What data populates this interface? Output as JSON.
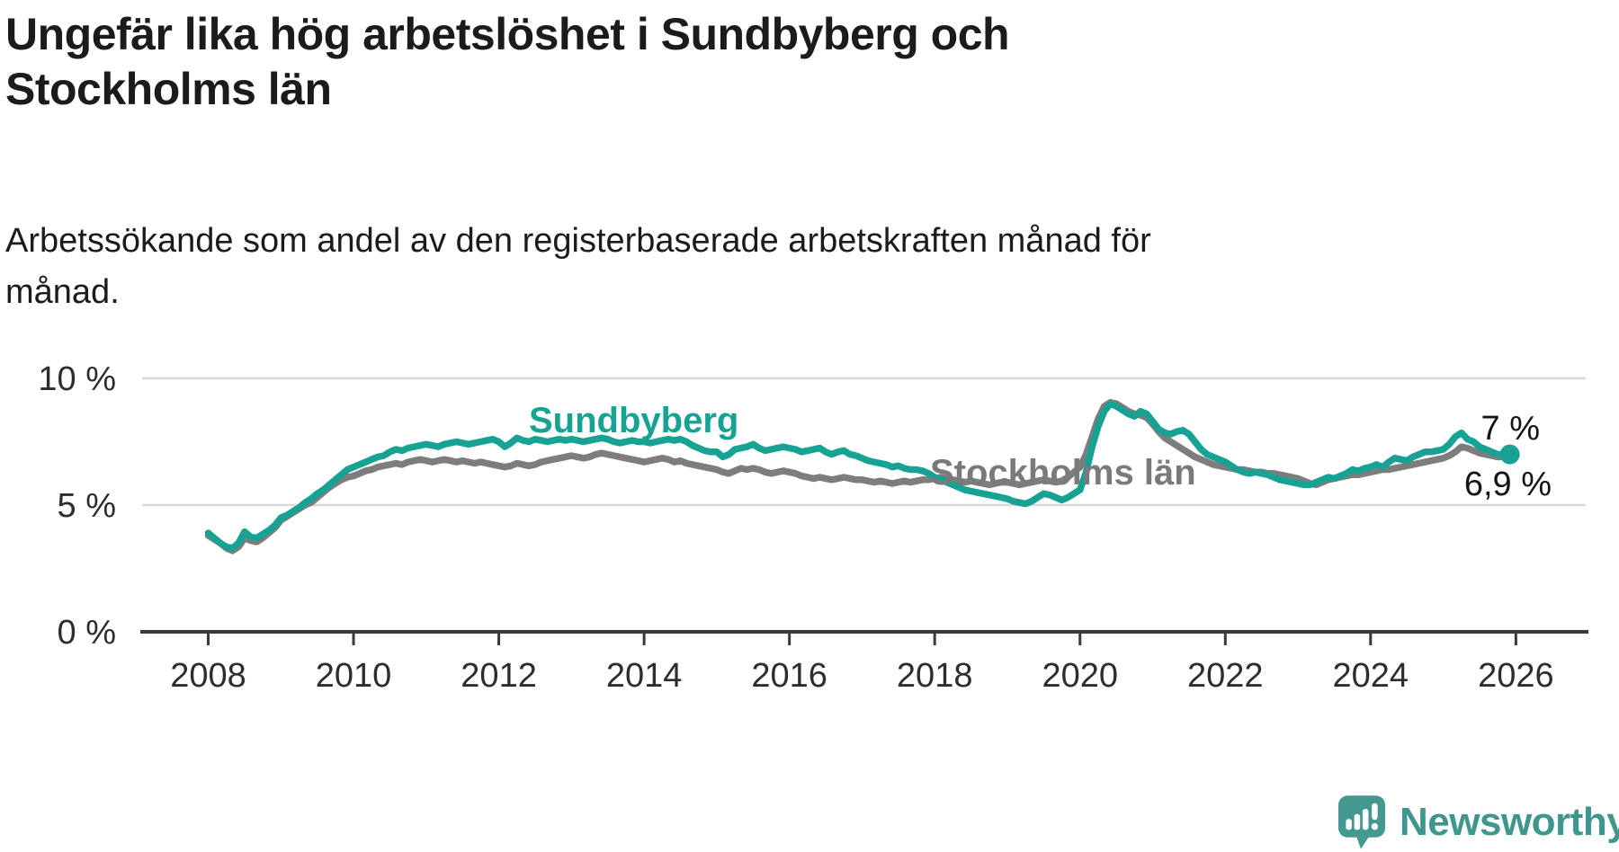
{
  "header": {
    "title": "Ungefär lika hög arbetslöshet i Sundbyberg och Stockholms län",
    "title_lines": [
      "Ungefär lika hög arbetslöshet i Sundbyberg och",
      "Stockholms län"
    ],
    "subtitle": "Arbetssökande som andel av den registerbaserade arbetskraften månad för månad.",
    "subtitle_lines": [
      "Arbetssökande som andel av den registerbaserade arbetskraften månad för",
      "månad."
    ]
  },
  "colors": {
    "accent_teal": "#17a294",
    "comparison_gray": "#7d7d7d",
    "grid": "#d9d9d9",
    "axis": "#3a3a3a",
    "tick_text": "#2d2d2d",
    "annotation_text": "#141414",
    "logo_teal": "#3f968c",
    "logo_icon_teal": "#43988f"
  },
  "chart_data": {
    "type": "line",
    "title": "Ungefär lika hög arbetslöshet i Sundbyberg och Stockholms län",
    "subtitle": "Arbetssökande som andel av den registerbaserade arbetskraften månad för månad.",
    "unit": "%",
    "x_start_year": 2008,
    "points_per_year": 12,
    "xlim": [
      2007.1,
      2026.9
    ],
    "ylim": [
      0,
      10.6
    ],
    "grid": "horizontal-only",
    "legend_position": "direct-labels-on-lines",
    "x_ticks": [
      2008,
      2010,
      2012,
      2014,
      2016,
      2018,
      2020,
      2022,
      2024,
      2026
    ],
    "y_ticks": [
      {
        "value": 0,
        "label": "0 %"
      },
      {
        "value": 5,
        "label": "5 %"
      },
      {
        "value": 10,
        "label": "10 %"
      }
    ],
    "series": [
      {
        "name": "Stockholms län",
        "color": "#7d7d7d",
        "endpoint_dot": false,
        "start": "2008-01",
        "values": [
          3.8,
          3.65,
          3.5,
          3.3,
          3.2,
          3.35,
          3.7,
          3.6,
          3.55,
          3.7,
          3.9,
          4.1,
          4.4,
          4.55,
          4.7,
          4.85,
          5.0,
          5.1,
          5.3,
          5.5,
          5.7,
          5.85,
          6.0,
          6.1,
          6.15,
          6.25,
          6.35,
          6.4,
          6.5,
          6.55,
          6.6,
          6.65,
          6.6,
          6.7,
          6.75,
          6.8,
          6.75,
          6.7,
          6.75,
          6.8,
          6.75,
          6.7,
          6.75,
          6.7,
          6.65,
          6.7,
          6.65,
          6.6,
          6.55,
          6.5,
          6.55,
          6.65,
          6.6,
          6.55,
          6.6,
          6.7,
          6.75,
          6.8,
          6.85,
          6.9,
          6.95,
          6.9,
          6.85,
          6.9,
          7.0,
          7.05,
          7.0,
          6.95,
          6.9,
          6.85,
          6.8,
          6.75,
          6.7,
          6.75,
          6.8,
          6.85,
          6.8,
          6.7,
          6.75,
          6.65,
          6.6,
          6.55,
          6.5,
          6.45,
          6.4,
          6.3,
          6.25,
          6.35,
          6.45,
          6.4,
          6.45,
          6.4,
          6.3,
          6.25,
          6.3,
          6.35,
          6.3,
          6.25,
          6.15,
          6.1,
          6.05,
          6.1,
          6.05,
          6.0,
          6.05,
          6.1,
          6.05,
          6.0,
          6.0,
          5.95,
          5.9,
          5.95,
          5.9,
          5.85,
          5.9,
          5.95,
          5.9,
          5.95,
          6.0,
          6.0,
          6.05,
          6.1,
          6.05,
          6.0,
          5.95,
          5.9,
          5.95,
          5.9,
          5.85,
          5.8,
          5.85,
          5.9,
          5.9,
          5.85,
          5.8,
          5.85,
          5.9,
          5.95,
          6.0,
          5.95,
          5.9,
          5.95,
          6.1,
          6.3,
          6.5,
          7.0,
          7.7,
          8.4,
          8.9,
          9.05,
          9.0,
          8.85,
          8.7,
          8.6,
          8.55,
          8.45,
          8.2,
          7.9,
          7.65,
          7.5,
          7.35,
          7.2,
          7.05,
          6.9,
          6.8,
          6.7,
          6.6,
          6.55,
          6.5,
          6.45,
          6.4,
          6.4,
          6.35,
          6.3,
          6.3,
          6.25,
          6.25,
          6.2,
          6.15,
          6.1,
          6.05,
          5.95,
          5.85,
          5.8,
          5.9,
          6.0,
          6.05,
          6.1,
          6.15,
          6.2,
          6.2,
          6.25,
          6.3,
          6.35,
          6.4,
          6.4,
          6.45,
          6.5,
          6.55,
          6.6,
          6.65,
          6.7,
          6.75,
          6.8,
          6.85,
          6.95,
          7.1,
          7.3,
          7.25,
          7.15,
          7.05,
          7.0,
          6.95,
          6.9,
          6.9,
          6.9
        ]
      },
      {
        "name": "Sundbyberg",
        "color": "#17a294",
        "endpoint_dot": true,
        "start": "2008-01",
        "values": [
          3.9,
          3.7,
          3.5,
          3.35,
          3.3,
          3.5,
          3.95,
          3.75,
          3.7,
          3.85,
          4.0,
          4.2,
          4.5,
          4.6,
          4.75,
          4.9,
          5.1,
          5.25,
          5.45,
          5.6,
          5.8,
          6.0,
          6.2,
          6.4,
          6.5,
          6.6,
          6.7,
          6.8,
          6.9,
          6.95,
          7.1,
          7.2,
          7.15,
          7.25,
          7.3,
          7.35,
          7.4,
          7.35,
          7.3,
          7.4,
          7.45,
          7.5,
          7.45,
          7.4,
          7.45,
          7.5,
          7.55,
          7.6,
          7.5,
          7.3,
          7.45,
          7.65,
          7.55,
          7.5,
          7.6,
          7.55,
          7.5,
          7.55,
          7.6,
          7.55,
          7.6,
          7.55,
          7.5,
          7.55,
          7.6,
          7.65,
          7.6,
          7.5,
          7.45,
          7.5,
          7.55,
          7.5,
          7.5,
          7.45,
          7.5,
          7.55,
          7.6,
          7.55,
          7.6,
          7.5,
          7.35,
          7.25,
          7.15,
          7.1,
          7.1,
          6.9,
          7.0,
          7.2,
          7.25,
          7.3,
          7.4,
          7.25,
          7.15,
          7.2,
          7.25,
          7.3,
          7.25,
          7.2,
          7.1,
          7.15,
          7.2,
          7.25,
          7.1,
          7.0,
          7.1,
          7.15,
          7.0,
          6.95,
          6.85,
          6.75,
          6.7,
          6.65,
          6.6,
          6.5,
          6.55,
          6.45,
          6.4,
          6.4,
          6.35,
          6.25,
          6.1,
          6.0,
          5.9,
          5.8,
          5.7,
          5.6,
          5.55,
          5.5,
          5.45,
          5.4,
          5.35,
          5.3,
          5.25,
          5.15,
          5.1,
          5.05,
          5.15,
          5.3,
          5.45,
          5.4,
          5.3,
          5.2,
          5.3,
          5.45,
          5.6,
          6.3,
          7.3,
          8.1,
          8.7,
          9.0,
          8.9,
          8.75,
          8.6,
          8.5,
          8.7,
          8.6,
          8.3,
          8.0,
          7.85,
          7.8,
          7.9,
          7.95,
          7.8,
          7.5,
          7.2,
          7.0,
          6.9,
          6.8,
          6.7,
          6.55,
          6.4,
          6.3,
          6.25,
          6.3,
          6.25,
          6.2,
          6.1,
          6.0,
          5.95,
          5.9,
          5.85,
          5.8,
          5.8,
          5.9,
          6.0,
          6.1,
          6.05,
          6.15,
          6.25,
          6.4,
          6.35,
          6.45,
          6.5,
          6.6,
          6.5,
          6.7,
          6.85,
          6.8,
          6.75,
          6.9,
          7.0,
          7.1,
          7.1,
          7.15,
          7.2,
          7.4,
          7.7,
          7.85,
          7.6,
          7.5,
          7.3,
          7.2,
          7.1,
          7.0,
          7.0,
          7.0
        ]
      }
    ],
    "series_labels": [
      {
        "text": "Sundbyberg",
        "series": "Sundbyberg"
      },
      {
        "text": "Stockholms län",
        "series": "Stockholms län"
      }
    ],
    "annotations": [
      {
        "text": "7 %",
        "series": "Sundbyberg",
        "position": "end-above"
      },
      {
        "text": "6,9 %",
        "series": "Stockholms län",
        "position": "end-below"
      }
    ]
  },
  "logo": {
    "text": "Newsworthy",
    "icon": "newsworthy-speech-bubble-bar-chart-icon"
  }
}
